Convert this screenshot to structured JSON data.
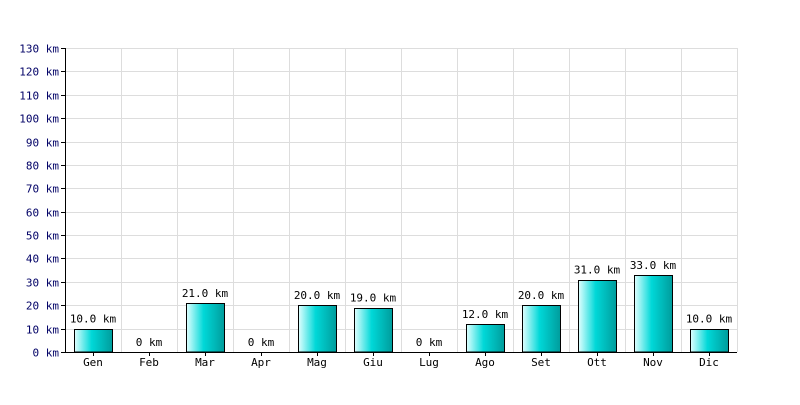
{
  "chart_data": {
    "type": "bar",
    "categories": [
      "Gen",
      "Feb",
      "Mar",
      "Apr",
      "Mag",
      "Giu",
      "Lug",
      "Ago",
      "Set",
      "Ott",
      "Nov",
      "Dic"
    ],
    "values": [
      10,
      0,
      21,
      0,
      20,
      19,
      0,
      12,
      20,
      31,
      33,
      10
    ],
    "value_labels": [
      "10.0 km",
      "0 km",
      "21.0 km",
      "0 km",
      "20.0 km",
      "19.0 km",
      "0 km",
      "12.0 km",
      "20.0 km",
      "31.0 km",
      "33.0 km",
      "10.0 km"
    ],
    "y_ticks": [
      0,
      10,
      20,
      30,
      40,
      50,
      60,
      70,
      80,
      90,
      100,
      110,
      120,
      130
    ],
    "y_tick_labels": [
      "0 km",
      "10 km",
      "20 km",
      "30 km",
      "40 km",
      "50 km",
      "60 km",
      "70 km",
      "80 km",
      "90 km",
      "100 km",
      "110 km",
      "120 km",
      "130 km"
    ],
    "ylim": [
      0,
      130
    ],
    "title": "",
    "xlabel": "",
    "ylabel": "",
    "grid": true,
    "colors": {
      "bar_light": "#e0ffff",
      "bar_mid": "#00d8d8",
      "bar_dark": "#009c9c",
      "bar_stroke": "#000000",
      "grid": "#dddddd",
      "axis": "#000000",
      "tick_text": "#000066"
    }
  }
}
